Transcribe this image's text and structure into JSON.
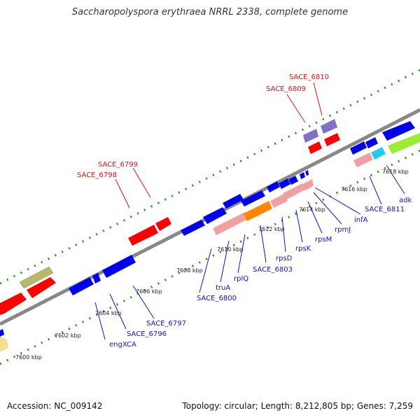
{
  "title": "Saccharopolyspora erythraea NRRL 2338, complete genome",
  "footer": {
    "accession": "Accession: NC_009142",
    "topology": "Topology: circular; Length: 8,212,805 bp; Genes: 7,259"
  },
  "colors": {
    "backbone": "#888888",
    "tick": "#2a8a2a",
    "label_red": "#dd1111",
    "label_blue": "#1111cc",
    "red": "#ff0000",
    "blue": "#0000ee",
    "purple": "#8070cc",
    "pink": "#f0a0a0",
    "orange": "#ff8800",
    "cyan": "#22ccee",
    "lime": "#99ee33",
    "olive": "#b8b86a",
    "pale": "#f0e090"
  },
  "scale_labels": [
    "7600 kbp",
    "7602 kbp",
    "7604 kbp",
    "7606 kbp",
    "7608 kbp",
    "7610 kbp",
    "7612 kbp",
    "7614 kbp",
    "7616 kbp",
    "7618 kbp"
  ],
  "gene_labels_top": [
    "SACE_6810",
    "SACE_6809",
    "SACE_6799",
    "SACE_6798"
  ],
  "gene_labels_bottom": [
    "adk",
    "SACE_6811",
    "infA",
    "rpmJ",
    "rpsM",
    "rpsK",
    "rpsD",
    "SACE_6803",
    "rplQ",
    "truA",
    "SACE_6800",
    "SACE_6797",
    "SACE_6796",
    "engXCA"
  ]
}
